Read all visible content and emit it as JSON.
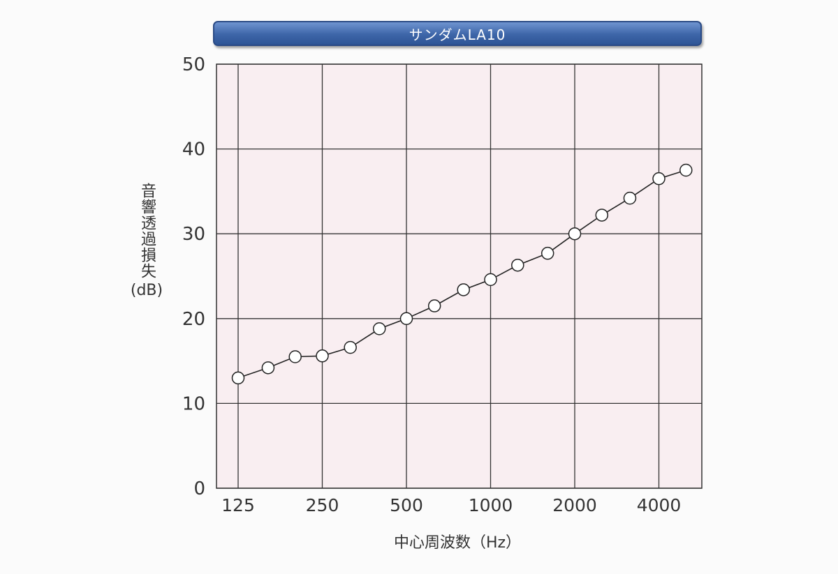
{
  "chart_data": {
    "type": "line",
    "title": "サンダムLA10",
    "ylabel": "音響透過損失",
    "ylabel_unit": "(dB)",
    "xlabel": "中心周波数（Hz）",
    "x_scale": "log",
    "y_ticks": [
      "0",
      "10",
      "20",
      "30",
      "40",
      "50"
    ],
    "ylim": [
      0,
      50
    ],
    "x_ticks": [
      {
        "value": 125,
        "label": "125"
      },
      {
        "value": 250,
        "label": "250"
      },
      {
        "value": 500,
        "label": "500"
      },
      {
        "value": 1000,
        "label": "1000"
      },
      {
        "value": 2000,
        "label": "2000"
      },
      {
        "value": 4000,
        "label": "4000"
      }
    ],
    "grid": true,
    "plot_background": "#f9eef1",
    "line_color": "#222222",
    "series": [
      {
        "x": [
          125,
          160,
          200,
          250,
          315,
          400,
          500,
          630,
          800,
          1000,
          1250,
          1600,
          2000,
          2500,
          3150,
          4000,
          5000
        ],
        "y": [
          13.0,
          14.2,
          15.5,
          15.6,
          16.6,
          18.8,
          20.0,
          21.5,
          23.4,
          24.6,
          26.3,
          27.7,
          30.0,
          32.2,
          34.2,
          36.5,
          37.5
        ]
      }
    ]
  }
}
